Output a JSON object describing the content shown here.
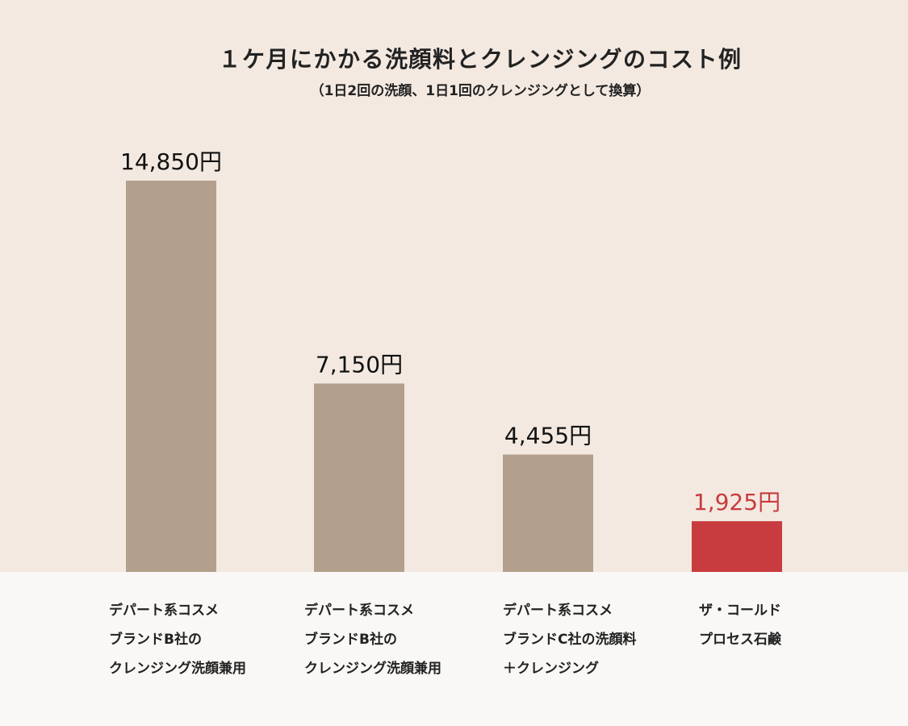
{
  "chart_data": {
    "type": "bar",
    "title": "１ケ月にかかる洗顔料とクレンジングのコスト例",
    "subtitle": "（1日2回の洗顔、1日1回のクレンジングとして換算）",
    "unit": "円",
    "categories": [
      [
        "デパート系コスメ",
        "ブランドB社の",
        "クレンジング洗顔兼用"
      ],
      [
        "デパート系コスメ",
        "ブランドB社の",
        "クレンジング洗顔兼用"
      ],
      [
        "デパート系コスメ",
        "ブランドC社の洗顔料",
        "＋クレンジング"
      ],
      [
        "ザ・コールド",
        "プロセス石鹸"
      ]
    ],
    "values": [
      14850,
      7150,
      4455,
      1925
    ],
    "value_labels": [
      "14,850円",
      "7,150円",
      "4,455円",
      "1,925円"
    ],
    "bar_colors": [
      "#b2a08d",
      "#b2a08d",
      "#b2a08d",
      "#c83b3e"
    ],
    "value_label_colors": [
      "#111111",
      "#111111",
      "#111111",
      "#c83b3e"
    ],
    "ylim": [
      0,
      15000
    ],
    "grid": false,
    "legend": "none",
    "colors": {
      "chart_background": "#f3e9e1",
      "label_background": "#f9f8f6",
      "base_bar": "#b2a08d",
      "highlight_bar": "#c83b3e"
    }
  }
}
